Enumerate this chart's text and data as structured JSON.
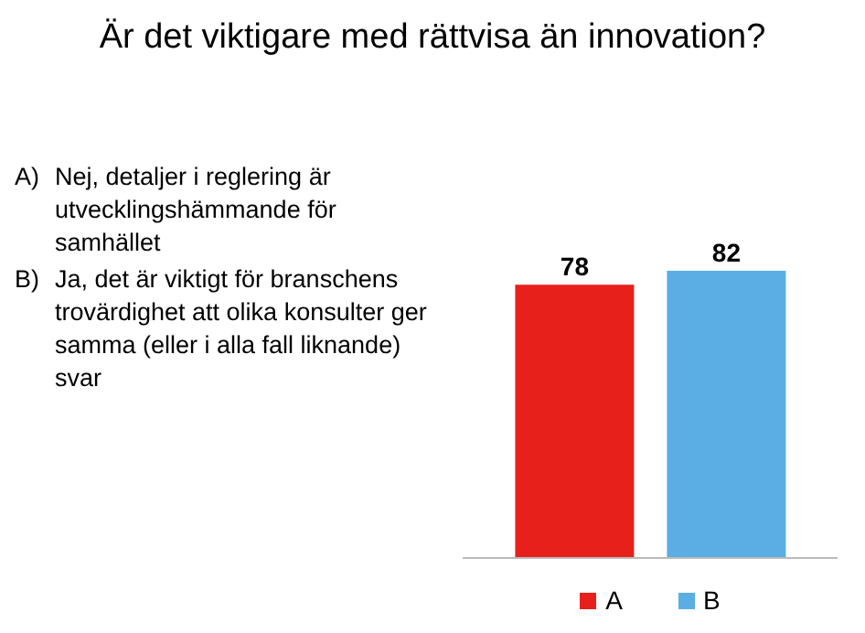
{
  "chart_data": {
    "type": "bar",
    "title": "Är det viktigare med rättvisa än innovation?",
    "annotations": [
      "A)\tNej, detaljer i reglering är utvecklingshämmande för samhället",
      "B)\tJa, det är viktigt för branschens trovärdighet att olika konsulter ger samma (eller i alla fall liknande) svar"
    ],
    "categories": [
      null
    ],
    "series": [
      {
        "name": "A",
        "color": "#e8201c",
        "values": [
          78
        ]
      },
      {
        "name": "B",
        "color": "#5aaee3",
        "values": [
          82
        ]
      }
    ],
    "data_labels": true,
    "legend": "bottom",
    "grid": false
  }
}
